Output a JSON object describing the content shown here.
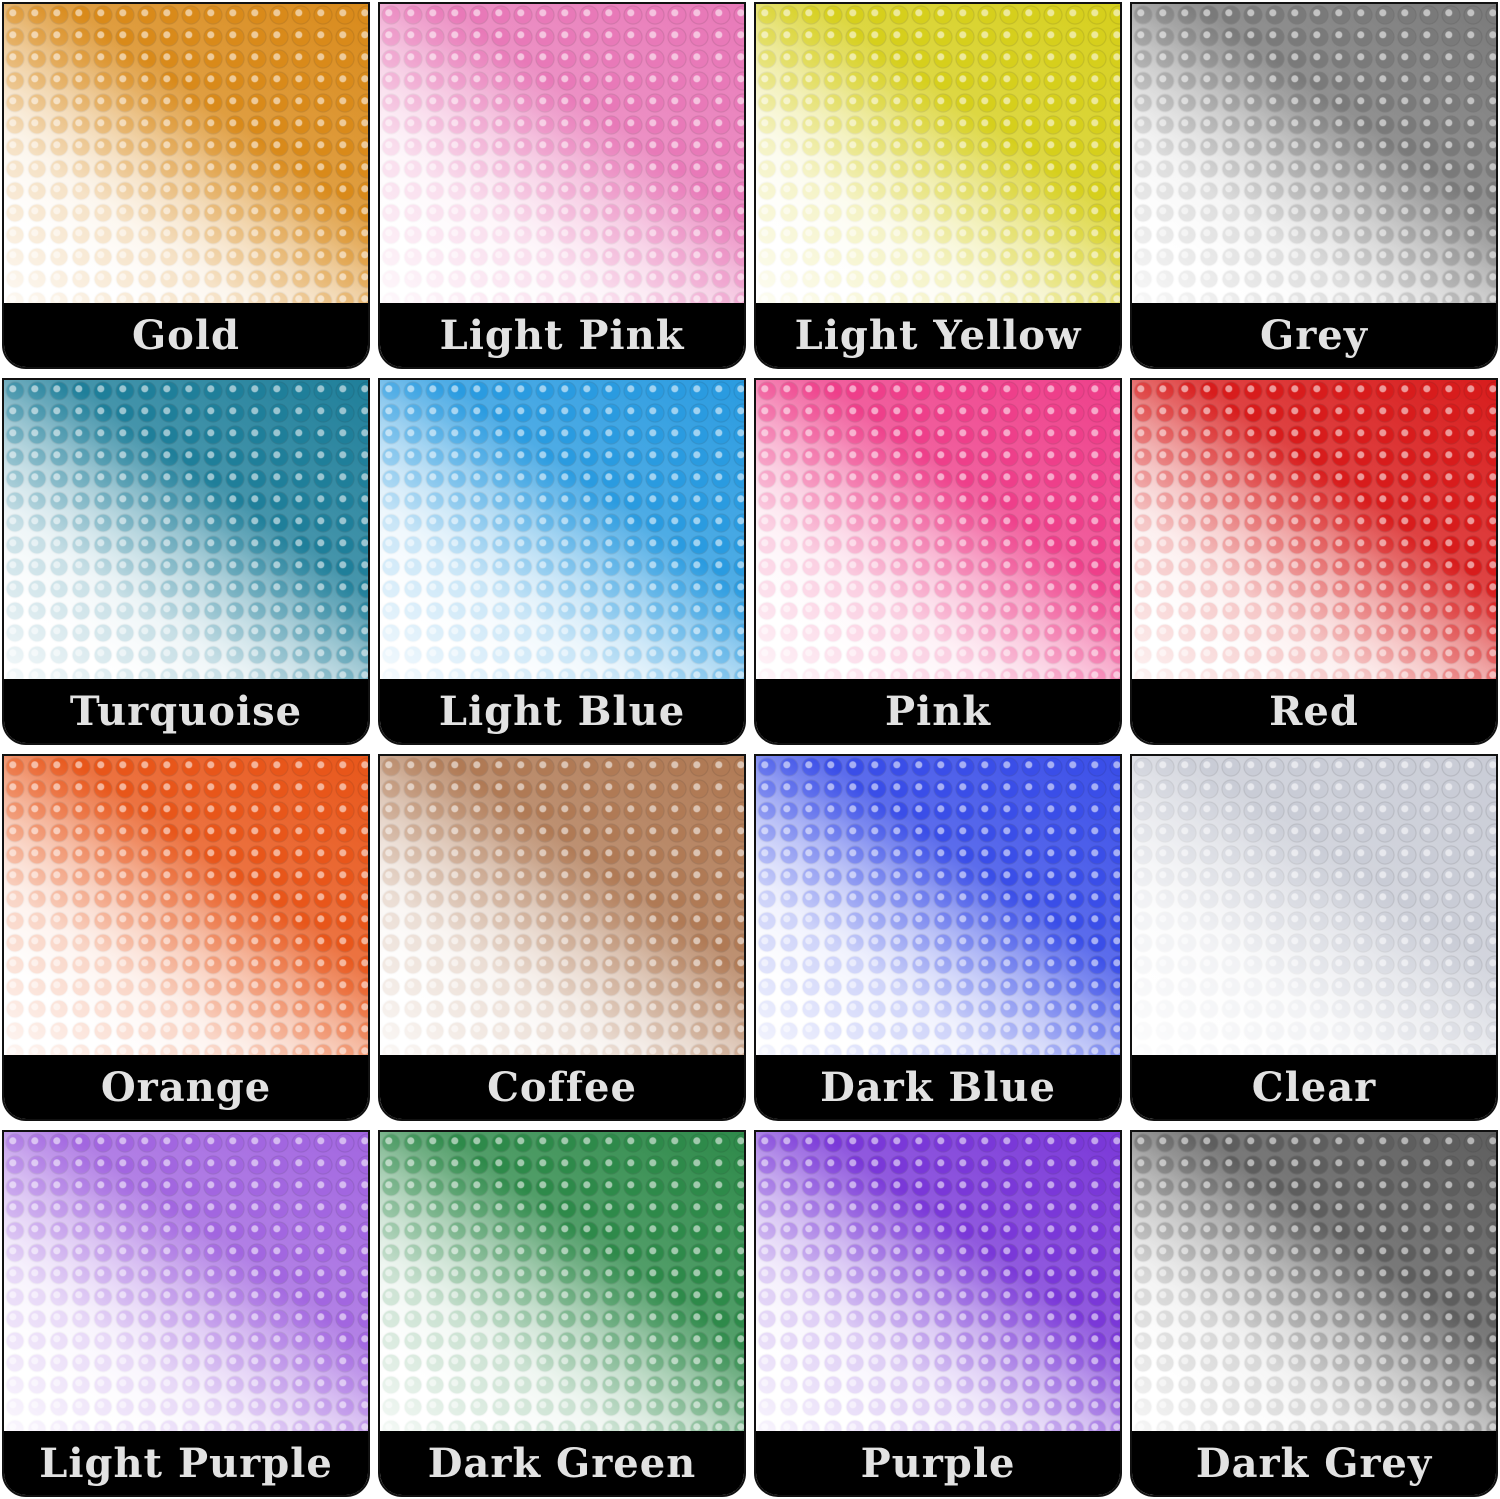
{
  "tiles": [
    {
      "label": "Gold",
      "color": "#d98a1a"
    },
    {
      "label": "Light Pink",
      "color": "#e879b8"
    },
    {
      "label": "Light Yellow",
      "color": "#d6cf1c"
    },
    {
      "label": "Grey",
      "color": "#7a7a7a"
    },
    {
      "label": "Turquoise",
      "color": "#1f7f9a"
    },
    {
      "label": "Light Blue",
      "color": "#2a9be0"
    },
    {
      "label": "Pink",
      "color": "#ee3f8a"
    },
    {
      "label": "Red",
      "color": "#d81c1c"
    },
    {
      "label": "Orange",
      "color": "#e8561a"
    },
    {
      "label": "Coffee",
      "color": "#b07a55"
    },
    {
      "label": "Dark Blue",
      "color": "#3a4ee8"
    },
    {
      "label": "Clear",
      "color": "#c9ccd6"
    },
    {
      "label": "Light Purple",
      "color": "#a266e0"
    },
    {
      "label": "Dark Green",
      "color": "#2e8a4a"
    },
    {
      "label": "Purple",
      "color": "#7a38d8"
    },
    {
      "label": "Dark Grey",
      "color": "#5e5e5e"
    }
  ]
}
